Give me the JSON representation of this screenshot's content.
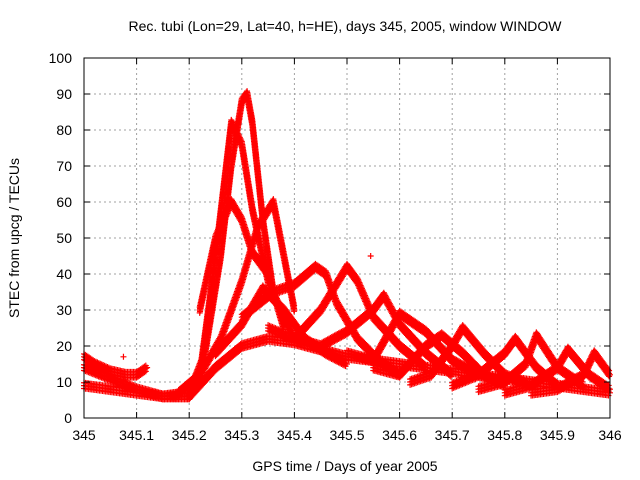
{
  "chart_data": {
    "type": "scatter",
    "title": "Rec. tubi (Lon=29, Lat=40, h=HE), days 345, 2005, window WINDOW",
    "xlabel": "GPS time / Days of year 2005",
    "ylabel": "STEC from upcg / TECUs",
    "xlim": [
      345,
      346
    ],
    "ylim": [
      0,
      100
    ],
    "grid": true,
    "marker": "+",
    "color": "#ff0000",
    "xticks": [
      "345",
      "345.1",
      "345.2",
      "345.3",
      "345.4",
      "345.5",
      "345.6",
      "345.7",
      "345.8",
      "345.9",
      "346"
    ],
    "yticks": [
      "0",
      "10",
      "20",
      "30",
      "40",
      "50",
      "60",
      "70",
      "80",
      "90",
      "100"
    ],
    "series": [
      {
        "x": [
          345.0,
          345.05,
          345.1,
          345.15,
          345.2,
          345.25,
          345.3,
          345.35,
          345.4,
          345.45,
          345.5,
          345.55,
          345.6,
          345.65,
          345.7,
          345.75,
          345.8,
          345.85,
          345.9,
          345.95,
          346.0
        ],
        "y": [
          9,
          8,
          7,
          6,
          6,
          14,
          20,
          22,
          21,
          19,
          17,
          16,
          15,
          14,
          13,
          12,
          11,
          10,
          9,
          8,
          7
        ]
      },
      {
        "x": [
          345.0,
          345.05,
          345.1,
          345.15,
          345.2,
          345.22,
          345.25,
          345.28,
          345.3,
          345.32,
          345.35,
          345.38,
          345.4
        ],
        "y": [
          14,
          11,
          8,
          6,
          6,
          12,
          45,
          82,
          76,
          58,
          38,
          28,
          22
        ]
      },
      {
        "x": [
          345.15,
          345.2,
          345.23,
          345.26,
          345.28,
          345.3,
          345.31,
          345.32,
          345.34,
          345.36,
          345.38
        ],
        "y": [
          6,
          7,
          18,
          45,
          70,
          88,
          90,
          82,
          55,
          35,
          25
        ]
      },
      {
        "x": [
          345.22,
          345.25,
          345.28,
          345.3,
          345.32,
          345.35
        ],
        "y": [
          30,
          50,
          60,
          55,
          46,
          40
        ]
      },
      {
        "x": [
          345.18,
          345.22,
          345.26,
          345.3,
          345.33,
          345.36,
          345.38,
          345.4
        ],
        "y": [
          7,
          12,
          22,
          38,
          53,
          60,
          45,
          30
        ]
      },
      {
        "x": [
          345.25,
          345.3,
          345.34,
          345.38,
          345.42,
          345.46,
          345.5
        ],
        "y": [
          18,
          26,
          36,
          30,
          22,
          18,
          15
        ]
      },
      {
        "x": [
          345.3,
          345.36,
          345.4,
          345.44,
          345.46,
          345.48,
          345.52,
          345.56,
          345.6
        ],
        "y": [
          28,
          35,
          37,
          42,
          40,
          32,
          22,
          16,
          12
        ]
      },
      {
        "x": [
          345.35,
          345.4,
          345.45,
          345.5,
          345.52,
          345.55,
          345.6,
          345.65
        ],
        "y": [
          25,
          22,
          30,
          42,
          38,
          28,
          20,
          14
        ]
      },
      {
        "x": [
          345.4,
          345.45,
          345.5,
          345.55,
          345.57,
          345.6,
          345.65,
          345.7
        ],
        "y": [
          22,
          20,
          24,
          30,
          34,
          26,
          18,
          12
        ]
      },
      {
        "x": [
          345.5,
          345.55,
          345.6,
          345.65,
          345.7,
          345.75,
          345.8
        ],
        "y": [
          18,
          16,
          29,
          24,
          16,
          12,
          10
        ]
      },
      {
        "x": [
          345.55,
          345.6,
          345.65,
          345.68,
          345.72,
          345.76,
          345.8
        ],
        "y": [
          14,
          12,
          20,
          23,
          18,
          12,
          9
        ]
      },
      {
        "x": [
          345.62,
          345.66,
          345.7,
          345.72,
          345.76,
          345.8,
          345.85
        ],
        "y": [
          10,
          12,
          20,
          25,
          18,
          12,
          9
        ]
      },
      {
        "x": [
          345.7,
          345.75,
          345.8,
          345.82,
          345.86,
          345.9
        ],
        "y": [
          9,
          12,
          18,
          22,
          14,
          9
        ]
      },
      {
        "x": [
          345.75,
          345.8,
          345.84,
          345.86,
          345.9,
          345.95
        ],
        "y": [
          8,
          10,
          15,
          23,
          14,
          9
        ]
      },
      {
        "x": [
          345.8,
          345.85,
          345.9,
          345.92,
          345.96,
          346.0
        ],
        "y": [
          7,
          9,
          14,
          19,
          12,
          8
        ]
      },
      {
        "x": [
          345.85,
          345.9,
          345.95,
          345.97,
          346.0
        ],
        "y": [
          7,
          8,
          12,
          18,
          12
        ]
      },
      {
        "x": [
          345.0,
          345.02,
          345.05,
          345.08,
          345.1,
          345.12
        ],
        "y": [
          17,
          15,
          13,
          12,
          12,
          14
        ]
      }
    ],
    "outliers": [
      {
        "x": 345.075,
        "y": 17
      },
      {
        "x": 345.545,
        "y": 45
      }
    ]
  }
}
